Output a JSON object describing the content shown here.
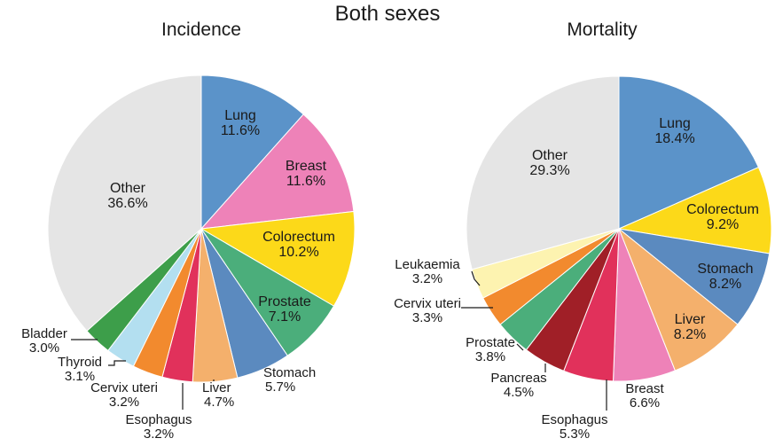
{
  "title": "Both sexes",
  "chart_data": [
    {
      "type": "pie",
      "title": "Incidence",
      "start_angle_deg": 0,
      "direction": "clockwise",
      "slices": [
        {
          "label": "Lung",
          "value": 11.6,
          "value_label": "11.6%",
          "color": "#5b93c9"
        },
        {
          "label": "Breast",
          "value": 11.6,
          "value_label": "11.6%",
          "color": "#ee82b8"
        },
        {
          "label": "Colorectum",
          "value": 10.2,
          "value_label": "10.2%",
          "color": "#fcd919"
        },
        {
          "label": "Prostate",
          "value": 7.1,
          "value_label": "7.1%",
          "color": "#4bae7b"
        },
        {
          "label": "Stomach",
          "value": 5.7,
          "value_label": "5.7%",
          "color": "#5b8abf"
        },
        {
          "label": "Liver",
          "value": 4.7,
          "value_label": "4.7%",
          "color": "#f4b06c"
        },
        {
          "label": "Esophagus",
          "value": 3.2,
          "value_label": "3.2%",
          "color": "#e1315b"
        },
        {
          "label": "Cervix uteri",
          "value": 3.2,
          "value_label": "3.2%",
          "color": "#f28a2e"
        },
        {
          "label": "Thyroid",
          "value": 3.1,
          "value_label": "3.1%",
          "color": "#b3dff0"
        },
        {
          "label": "Bladder",
          "value": 3.0,
          "value_label": "3.0%",
          "color": "#3d9e4a"
        },
        {
          "label": "Other",
          "value": 36.6,
          "value_label": "36.6%",
          "color": "#e5e5e5"
        }
      ]
    },
    {
      "type": "pie",
      "title": "Mortality",
      "start_angle_deg": 0,
      "direction": "clockwise",
      "slices": [
        {
          "label": "Lung",
          "value": 18.4,
          "value_label": "18.4%",
          "color": "#5b93c9"
        },
        {
          "label": "Colorectum",
          "value": 9.2,
          "value_label": "9.2%",
          "color": "#fcd919"
        },
        {
          "label": "Stomach",
          "value": 8.2,
          "value_label": "8.2%",
          "color": "#5b8abf"
        },
        {
          "label": "Liver",
          "value": 8.2,
          "value_label": "8.2%",
          "color": "#f4b06c"
        },
        {
          "label": "Breast",
          "value": 6.6,
          "value_label": "6.6%",
          "color": "#ee82b8"
        },
        {
          "label": "Esophagus",
          "value": 5.3,
          "value_label": "5.3%",
          "color": "#e1315b"
        },
        {
          "label": "Pancreas",
          "value": 4.5,
          "value_label": "4.5%",
          "color": "#a01f27"
        },
        {
          "label": "Prostate",
          "value": 3.8,
          "value_label": "3.8%",
          "color": "#4bae7b"
        },
        {
          "label": "Cervix uteri",
          "value": 3.3,
          "value_label": "3.3%",
          "color": "#f28a2e"
        },
        {
          "label": "Leukaemia",
          "value": 3.2,
          "value_label": "3.2%",
          "color": "#fdf3b0"
        },
        {
          "label": "Other",
          "value": 29.3,
          "value_label": "29.3%",
          "color": "#e5e5e5"
        }
      ]
    }
  ]
}
